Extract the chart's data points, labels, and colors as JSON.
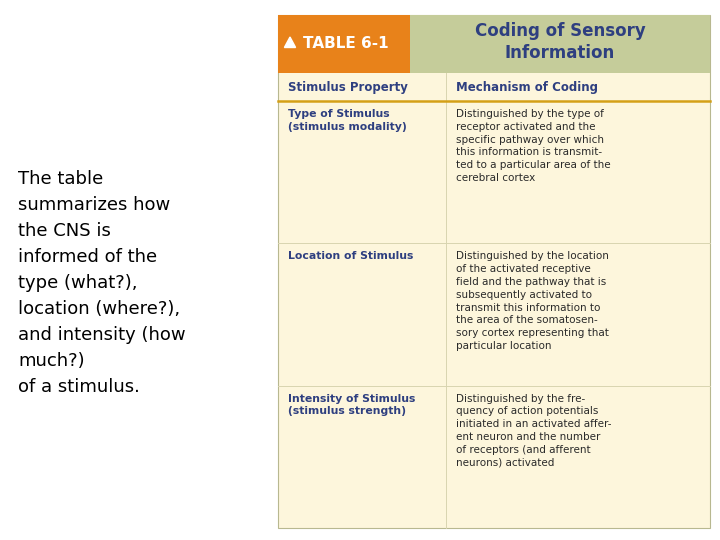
{
  "fig_bg": "#ffffff",
  "left_text_lines": [
    "The table",
    "summarizes how",
    "the CNS is",
    "informed of the",
    "type (what?),",
    "location (where?),",
    "and intensity (how",
    "much?)",
    "of a stimulus."
  ],
  "table_bg": "#fdf6dc",
  "header_bg_orange": "#e8821a",
  "header_bg_green": "#c5cc9a",
  "header_label_orange": "TABLE 6-1",
  "header_title": "Coding of Sensory\nInformation",
  "col_header1": "Stimulus Property",
  "col_header2": "Mechanism of Coding",
  "col_header_color": "#2e3f80",
  "divider_color": "#d4a017",
  "row1_prop": "Type of Stimulus\n(stimulus modality)",
  "row1_mech": "Distinguished by the type of\nreceptor activated and the\nspecific pathway over which\nthis information is transmit-\nted to a particular area of the\ncerebral cortex",
  "row2_prop": "Location of Stimulus",
  "row2_mech": "Distinguished by the location\nof the activated receptive\nfield and the pathway that is\nsubsequently activated to\ntransmit this information to\nthe area of the somatosen-\nsory cortex representing that\nparticular location",
  "row3_prop": "Intensity of Stimulus\n(stimulus strength)",
  "row3_mech": "Distinguished by the fre-\nquency of action potentials\ninitiated in an activated affer-\nent neuron and the number\nof receptors (and afferent\nneurons) activated",
  "prop_color": "#2e3f80",
  "mech_color": "#2a2a2a",
  "white": "#ffffff"
}
